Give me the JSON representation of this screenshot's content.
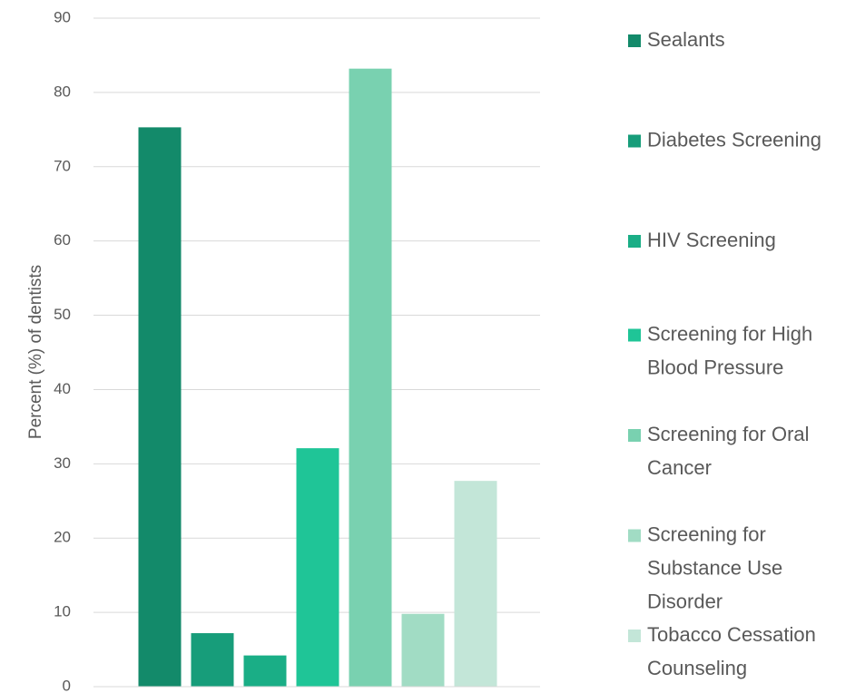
{
  "chart_data": {
    "type": "bar",
    "y_label": "Percent (%) of dentists",
    "series": [
      {
        "name": "Sealants",
        "color": "#138a6a",
        "values": [
          75.3
        ]
      },
      {
        "name": "Diabetes Screening",
        "color": "#179d7a",
        "values": [
          7.2
        ]
      },
      {
        "name": "HIV Screening",
        "color": "#1aae86",
        "values": [
          4.2
        ]
      },
      {
        "name": "Screening for High Blood Pressure",
        "color": "#1fc597",
        "values": [
          32.1
        ]
      },
      {
        "name": "Screening for Oral Cancer",
        "color": "#79d1b0",
        "values": [
          83.2
        ]
      },
      {
        "name": "Screening for Substance Use Disorder",
        "color": "#a1dcc4",
        "values": [
          9.8
        ]
      },
      {
        "name": "Tobacco Cessation Counseling",
        "color": "#c3e6d8",
        "values": [
          27.7
        ]
      }
    ],
    "ylim": [
      0,
      90
    ],
    "yticks": [
      0,
      10,
      20,
      30,
      40,
      50,
      60,
      70,
      80,
      90
    ],
    "grid": true,
    "legend": "right"
  }
}
